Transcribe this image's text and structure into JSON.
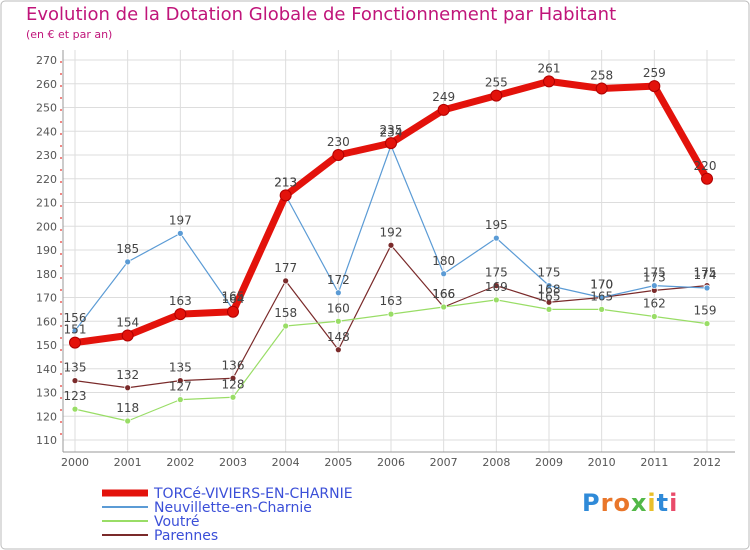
{
  "title": "Evolution de la Dotation Globale de Fonctionnement par Habitant",
  "subtitle": "(en € et par an)",
  "brand": "Proxiti",
  "chart_data": {
    "type": "line",
    "title": "Evolution de la Dotation Globale de Fonctionnement par Habitant",
    "subtitle": "(en € et par an)",
    "xlabel": "",
    "ylabel": "",
    "x": [
      "2000",
      "2001",
      "2002",
      "2003",
      "2004",
      "2005",
      "2006",
      "2007",
      "2008",
      "2009",
      "2010",
      "2011",
      "2012"
    ],
    "ylim": [
      110,
      270
    ],
    "yticks": [
      110,
      120,
      130,
      140,
      150,
      160,
      170,
      180,
      190,
      200,
      210,
      220,
      230,
      240,
      250,
      260,
      270
    ],
    "grid": true,
    "legend_position": "bottom-left",
    "series": [
      {
        "name": "TORCé-VIVIERS-EN-CHARNIE",
        "color": "#e3120b",
        "values": [
          151,
          154,
          163,
          164,
          213,
          230,
          235,
          249,
          255,
          261,
          258,
          259,
          220
        ],
        "labels": [
          "151",
          "154",
          "163",
          "164",
          "213",
          "230",
          "235",
          "249",
          "255",
          "261",
          "258",
          "259",
          "220"
        ]
      },
      {
        "name": "Neuvillette-en-Charnie",
        "color": "#5b9bd5",
        "values": [
          156,
          185,
          197,
          165,
          213,
          172,
          234,
          180,
          195,
          175,
          170,
          175,
          174
        ],
        "labels": [
          "156",
          "185",
          "197",
          "165",
          "213",
          "172",
          "234",
          "180",
          "195",
          "175",
          "170",
          "175",
          "174"
        ]
      },
      {
        "name": "Voutré",
        "color": "#99dd66",
        "values": [
          123,
          118,
          127,
          128,
          158,
          160,
          163,
          166,
          169,
          165,
          165,
          162,
          159
        ],
        "labels": [
          "123",
          "118",
          "127",
          "128",
          "158",
          "160",
          "163",
          "166",
          "169",
          "165",
          "165",
          "162",
          "159"
        ]
      },
      {
        "name": "Parennes",
        "color": "#7a2a2a",
        "values": [
          135,
          132,
          135,
          136,
          177,
          148,
          192,
          166,
          175,
          168,
          170,
          173,
          175
        ],
        "labels": [
          "135",
          "132",
          "135",
          "136",
          "177",
          "148",
          "192",
          "166",
          "175",
          "168",
          "170",
          "173",
          "175"
        ]
      }
    ]
  }
}
